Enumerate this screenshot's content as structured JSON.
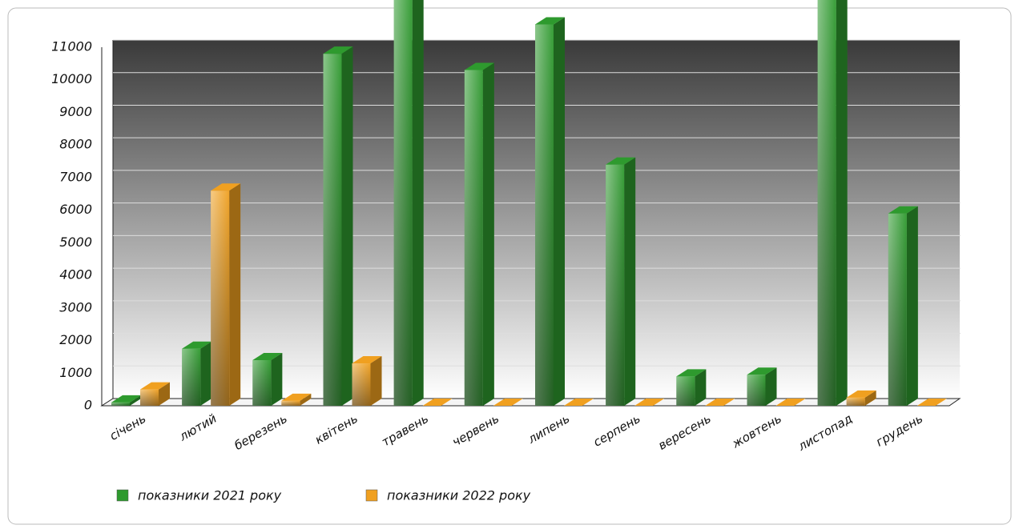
{
  "chart_data": {
    "type": "bar3d",
    "categories": [
      "січень",
      "лютий",
      "березень",
      "квітень",
      "травень",
      "червень",
      "липень",
      "серпень",
      "вересень",
      "жовтень",
      "листопад",
      "грудень"
    ],
    "series": [
      {
        "name": "показники 2021 року",
        "color": "#2e9a2e",
        "values": [
          100,
          1750,
          1400,
          10800,
          12500,
          10300,
          11700,
          7400,
          900,
          950,
          12500,
          5900
        ]
      },
      {
        "name": "показники 2022 року",
        "color": "#f0a020",
        "values": [
          500,
          6600,
          150,
          1300,
          0,
          0,
          0,
          0,
          0,
          0,
          250,
          0
        ]
      }
    ],
    "ylim": [
      0,
      11000
    ],
    "yticks": [
      0,
      1000,
      2000,
      3000,
      4000,
      5000,
      6000,
      7000,
      8000,
      9000,
      10000,
      11000
    ],
    "grid": true
  }
}
